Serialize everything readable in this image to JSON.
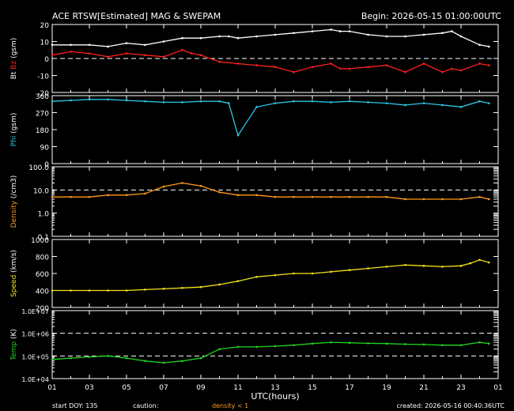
{
  "header": {
    "title": "ACE RTSW[Estimated] MAG & SWEPAM",
    "begin": "Begin: 2026-05-15 01:00:00UTC"
  },
  "footer": {
    "start_doy": "start DOY: 135",
    "caution": "caution:",
    "density_note": "density < 1",
    "created": "created: 2026-05-16 00:40:36UTC"
  },
  "colors": {
    "bt": "#ffffff",
    "bz": "#ff2020",
    "phi": "#2cc7e8",
    "density": "#ff9a1e",
    "speed": "#f2e21a",
    "temp": "#1fd61f",
    "note": "#ff9a1e"
  },
  "chart_data": {
    "x_axis": {
      "label": "UTC(hours)",
      "ticks": [
        "01",
        "03",
        "05",
        "07",
        "09",
        "11",
        "13",
        "15",
        "17",
        "19",
        "21",
        "23",
        "01"
      ],
      "range_hours": [
        0,
        24
      ]
    },
    "panels": [
      {
        "id": "mag",
        "type": "line",
        "ylabel": [
          "Bt",
          "Bz",
          "(gsm)"
        ],
        "ylim": [
          -20,
          20
        ],
        "yticks": [
          "20",
          "10",
          "0",
          "-10",
          "-20"
        ],
        "ref_lines": [
          0
        ],
        "series": [
          {
            "name": "Bt",
            "color": "#ffffff",
            "x": [
              0,
              1,
              2,
              3,
              4,
              5,
              6,
              7,
              8,
              9,
              9.5,
              10,
              11,
              12,
              13,
              14,
              15,
              15.5,
              16,
              17,
              18,
              19,
              20,
              21,
              21.5,
              22,
              23,
              23.5
            ],
            "y": [
              8,
              8,
              8,
              7,
              9,
              8,
              10,
              12,
              12,
              13,
              13,
              12,
              13,
              14,
              15,
              16,
              17,
              16,
              16,
              14,
              13,
              13,
              14,
              15,
              16,
              13,
              8,
              7
            ]
          },
          {
            "name": "Bz",
            "color": "#ff2020",
            "x": [
              0,
              1,
              2,
              3,
              4,
              5,
              6,
              7,
              7.5,
              8,
              9,
              10,
              11,
              12,
              13,
              14,
              15,
              15.5,
              16,
              17,
              18,
              19,
              20,
              21,
              21.5,
              22,
              23,
              23.5
            ],
            "y": [
              2,
              4,
              3,
              1,
              3,
              2,
              1,
              5,
              3,
              2,
              -2,
              -3,
              -4,
              -5,
              -8,
              -5,
              -3,
              -6,
              -6,
              -5,
              -4,
              -8,
              -3,
              -8,
              -6,
              -7,
              -3,
              -4
            ]
          }
        ]
      },
      {
        "id": "phi",
        "type": "line",
        "ylabel": [
          "Phi",
          "(gsm)"
        ],
        "ylim": [
          0,
          360
        ],
        "yticks": [
          "360",
          "270",
          "180",
          "90",
          "0"
        ],
        "series": [
          {
            "name": "Phi",
            "color": "#2cc7e8",
            "x": [
              0,
              1,
              2,
              3,
              4,
              5,
              6,
              7,
              8,
              9,
              9.5,
              10,
              11,
              12,
              13,
              14,
              15,
              16,
              17,
              18,
              19,
              20,
              21,
              22,
              23,
              23.5
            ],
            "y": [
              330,
              335,
              340,
              340,
              335,
              330,
              325,
              325,
              330,
              330,
              320,
              150,
              300,
              320,
              330,
              330,
              325,
              330,
              325,
              320,
              310,
              320,
              310,
              300,
              330,
              320
            ]
          }
        ]
      },
      {
        "id": "density",
        "type": "line",
        "scale": "log",
        "ylabel": [
          "Density",
          "(/cm3)"
        ],
        "ylim": [
          0.1,
          100
        ],
        "yticks": [
          "100.0",
          "10.0",
          "1.0",
          "0.1"
        ],
        "ref_lines": [
          10
        ],
        "series": [
          {
            "name": "Density",
            "color": "#ff9a1e",
            "x": [
              0,
              1,
              2,
              3,
              4,
              5,
              6,
              7,
              8,
              9,
              10,
              11,
              12,
              13,
              14,
              15,
              16,
              17,
              18,
              19,
              20,
              21,
              22,
              23,
              23.5
            ],
            "y": [
              5,
              5,
              5,
              6,
              6,
              7,
              14,
              20,
              15,
              8,
              6,
              6,
              5,
              5,
              5,
              5,
              5,
              5,
              5,
              4,
              4,
              4,
              4,
              5,
              4
            ]
          }
        ]
      },
      {
        "id": "speed",
        "type": "line",
        "ylabel": [
          "Speed",
          "(km/s)"
        ],
        "ylim": [
          200,
          1000
        ],
        "yticks": [
          "1000",
          "800",
          "600",
          "400",
          "200"
        ],
        "series": [
          {
            "name": "Speed",
            "color": "#f2e21a",
            "x": [
              0,
              1,
              2,
              3,
              4,
              5,
              6,
              7,
              8,
              9,
              10,
              11,
              12,
              13,
              14,
              15,
              16,
              17,
              18,
              19,
              20,
              21,
              22,
              22.5,
              23,
              23.5
            ],
            "y": [
              400,
              400,
              400,
              400,
              400,
              410,
              420,
              430,
              440,
              470,
              510,
              560,
              580,
              600,
              600,
              620,
              640,
              660,
              680,
              700,
              690,
              680,
              690,
              720,
              760,
              730
            ]
          }
        ]
      },
      {
        "id": "temp",
        "type": "line",
        "scale": "log",
        "ylabel": [
          "Temp",
          "(K)"
        ],
        "ylim": [
          10000,
          10000000
        ],
        "yticks": [
          "1.0E+07",
          "1.0E+06",
          "1.0E+05",
          "1.0E+04"
        ],
        "ref_lines": [
          1000000,
          100000
        ],
        "series": [
          {
            "name": "Temp",
            "color": "#1fd61f",
            "x": [
              0,
              1,
              2,
              3,
              4,
              5,
              6,
              7,
              8,
              9,
              10,
              11,
              12,
              13,
              14,
              15,
              16,
              17,
              18,
              19,
              20,
              21,
              22,
              23,
              23.5
            ],
            "y": [
              70000,
              80000,
              90000,
              100000,
              80000,
              60000,
              50000,
              60000,
              80000,
              200000,
              250000,
              250000,
              270000,
              300000,
              350000,
              400000,
              380000,
              360000,
              350000,
              330000,
              320000,
              300000,
              300000,
              400000,
              350000
            ]
          }
        ]
      }
    ]
  }
}
